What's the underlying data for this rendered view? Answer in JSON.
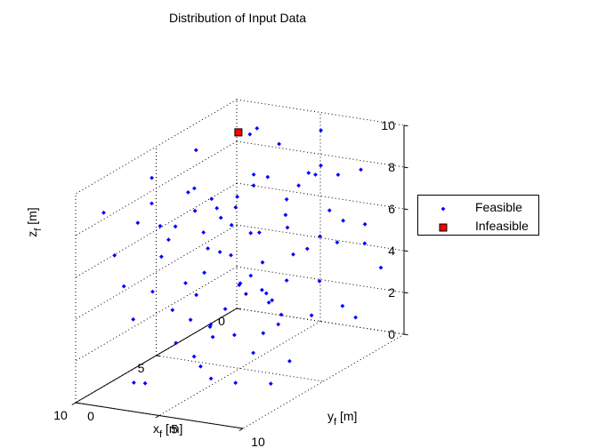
{
  "chart_data": {
    "type": "scatter3d",
    "title": "Distribution of Input Data",
    "xlabel": "x_f [m]",
    "ylabel": "y_f [m]",
    "zlabel": "z_f [m]",
    "xlabel_parts": [
      "x",
      "f",
      " [m]"
    ],
    "ylabel_parts": [
      "y",
      "f",
      " [m]"
    ],
    "zlabel_parts": [
      "z",
      "f",
      " [m]"
    ],
    "xlim": [
      0,
      10
    ],
    "ylim": [
      0,
      10
    ],
    "zlim": [
      0,
      10
    ],
    "xticks": [
      0,
      5,
      10
    ],
    "yticks": [
      0,
      5,
      10
    ],
    "zticks": [
      0,
      2,
      4,
      6,
      8,
      10
    ],
    "xtick_labels": [
      "0",
      "5",
      "10"
    ],
    "ytick_labels": [
      "0",
      "5",
      "10"
    ],
    "ztick_labels": [
      "0",
      "2",
      "4",
      "6",
      "8",
      "10"
    ],
    "grid": true,
    "legend_position": "outside-right",
    "series": [
      {
        "name": "Feasible",
        "color": "#0000ff",
        "marker": "dot",
        "points": [
          [
            5.5,
            2.8,
            7.5
          ],
          [
            3.6,
            6.5,
            6.3
          ],
          [
            6.6,
            4.8,
            2.8
          ],
          [
            8.4,
            1.9,
            3.5
          ],
          [
            2.1,
            5.4,
            4.2
          ],
          [
            7.3,
            8.8,
            5.1
          ],
          [
            0.9,
            3.4,
            8.7
          ],
          [
            4.8,
            9.6,
            6.8
          ],
          [
            9.2,
            6.7,
            2.2
          ],
          [
            1.6,
            7.9,
            5.9
          ],
          [
            6.1,
            0.8,
            9.1
          ],
          [
            3.0,
            2.2,
            1.6
          ],
          [
            8.8,
            4.4,
            7.8
          ],
          [
            0.5,
            9.1,
            3.3
          ],
          [
            5.1,
            5.9,
            0.9
          ],
          [
            2.7,
            1.1,
            6.6
          ],
          [
            7.8,
            7.2,
            8.4
          ],
          [
            4.2,
            3.7,
            4.9
          ],
          [
            9.6,
            2.5,
            5.7
          ],
          [
            1.2,
            6.1,
            2.6
          ],
          [
            6.9,
            9.8,
            1.8
          ],
          [
            3.4,
            8.3,
            9.4
          ],
          [
            8.0,
            0.4,
            6.2
          ],
          [
            0.2,
            4.9,
            7.1
          ],
          [
            5.7,
            7.6,
            3.9
          ],
          [
            2.4,
            3.1,
            9.8
          ],
          [
            7.1,
            5.3,
            0.5
          ],
          [
            4.5,
            1.8,
            8.0
          ],
          [
            9.9,
            8.1,
            4.1
          ],
          [
            1.8,
            9.4,
            6.0
          ],
          [
            6.3,
            6.9,
            7.3
          ],
          [
            3.8,
            0.6,
            3.0
          ],
          [
            8.6,
            3.2,
            9.3
          ],
          [
            0.7,
            7.0,
            1.3
          ],
          [
            5.3,
            4.1,
            5.6
          ],
          [
            2.9,
            9.9,
            2.1
          ],
          [
            7.6,
            1.4,
            7.7
          ],
          [
            4.0,
            5.7,
            8.8
          ],
          [
            9.4,
            9.2,
            6.5
          ],
          [
            1.4,
            2.7,
            4.6
          ],
          [
            6.7,
            3.9,
            1.2
          ],
          [
            3.2,
            7.3,
            5.2
          ],
          [
            8.2,
            6.3,
            3.6
          ],
          [
            0.4,
            1.6,
            9.0
          ],
          [
            5.9,
            8.6,
            8.2
          ],
          [
            2.2,
            4.6,
            0.8
          ],
          [
            7.4,
            2.1,
            4.4
          ],
          [
            4.7,
            9.0,
            2.9
          ],
          [
            9.0,
            5.0,
            8.6
          ],
          [
            1.0,
            0.9,
            5.4
          ],
          [
            6.5,
            7.8,
            6.1
          ],
          [
            3.6,
            3.5,
            7.4
          ],
          [
            8.9,
            8.5,
            1.5
          ],
          [
            0.8,
            5.8,
            9.6
          ],
          [
            5.0,
            2.4,
            3.2
          ],
          [
            2.6,
            6.8,
            8.5
          ],
          [
            7.9,
            4.7,
            9.7
          ],
          [
            4.3,
            0.3,
            1.9
          ],
          [
            9.7,
            7.4,
            7.0
          ],
          [
            1.3,
            8.9,
            4.8
          ],
          [
            6.0,
            1.2,
            6.8
          ],
          [
            3.3,
            5.1,
            2.4
          ],
          [
            8.3,
            9.5,
            5.8
          ],
          [
            0.1,
            3.8,
            6.4
          ],
          [
            5.6,
            6.4,
            9.2
          ],
          [
            2.0,
            0.2,
            3.8
          ],
          [
            7.2,
            3.3,
            2.0
          ],
          [
            4.9,
            7.7,
            4.5
          ],
          [
            9.3,
            1.0,
            8.9
          ],
          [
            1.7,
            4.3,
            1.0
          ],
          [
            6.8,
            5.6,
            8.1
          ],
          [
            3.9,
            9.3,
            7.6
          ],
          [
            8.7,
            2.9,
            0.7
          ],
          [
            0.6,
            8.0,
            7.9
          ],
          [
            5.4,
            0.7,
            5.0
          ],
          [
            2.3,
            5.2,
            6.9
          ],
          [
            7.7,
            9.0,
            3.4
          ],
          [
            4.6,
            2.0,
            9.9
          ],
          [
            9.1,
            6.0,
            4.3
          ],
          [
            1.1,
            1.9,
            2.3
          ],
          [
            6.4,
            8.2,
            0.3
          ],
          [
            3.1,
            4.0,
            8.3
          ],
          [
            8.5,
            7.0,
            9.5
          ],
          [
            0.3,
            0.5,
            1.4
          ],
          [
            5.8,
            3.6,
            6.7
          ],
          [
            2.8,
            8.7,
            5.5
          ],
          [
            7.0,
            6.6,
            2.7
          ],
          [
            4.1,
            4.5,
            3.1
          ],
          [
            9.5,
            3.0,
            1.1
          ],
          [
            1.5,
            7.5,
            8.0
          ]
        ]
      },
      {
        "name": "Infeasible",
        "color": "#ff0000",
        "marker": "square",
        "points": [
          [
            0.1,
            0.2,
            8.5
          ]
        ]
      }
    ]
  }
}
